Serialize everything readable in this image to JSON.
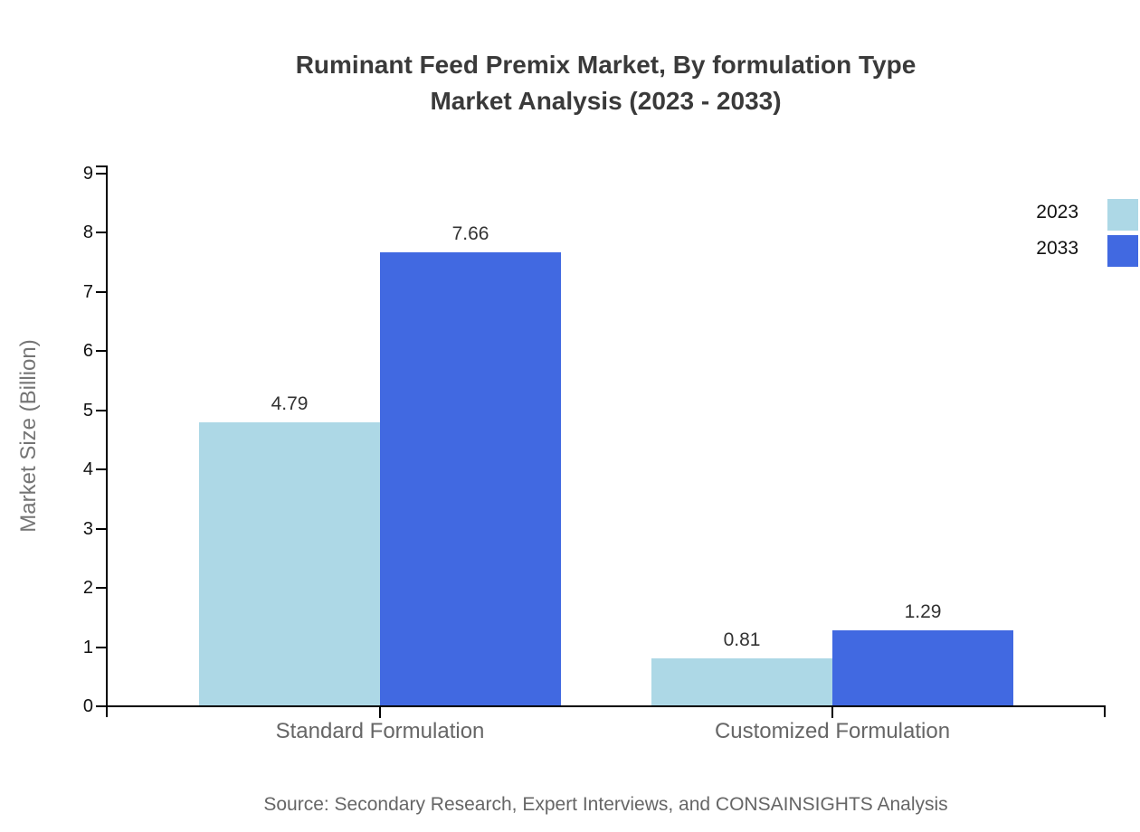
{
  "title": {
    "line1": "Ruminant Feed Premix Market, By formulation Type",
    "line2": "Market Analysis (2023 - 2033)"
  },
  "chart_data": {
    "type": "bar",
    "title": "Ruminant Feed Premix Market, By formulation Type Market Analysis (2023 - 2033)",
    "categories": [
      "Standard Formulation",
      "Customized Formulation"
    ],
    "series": [
      {
        "name": "2023",
        "color": "#add8e6",
        "values": [
          4.79,
          0.81
        ]
      },
      {
        "name": "2033",
        "color": "#4169e1",
        "values": [
          7.66,
          1.29
        ]
      }
    ],
    "xlabel": "",
    "ylabel": "Market Size (Billion)",
    "ylim": [
      0,
      9
    ],
    "ytick_step": 1,
    "ytick_labels": [
      "0",
      "1",
      "2",
      "3",
      "4",
      "5",
      "6",
      "7",
      "8",
      "9"
    ],
    "value_labels": [
      [
        "4.79",
        "0.81"
      ],
      [
        "7.66",
        "1.29"
      ]
    ],
    "grid": false,
    "legend_position": "top-right",
    "axis_color": "#000000"
  },
  "source": {
    "text": "Source: Secondary Research, Expert Interviews, and CONSAINSIGHTS Analysis"
  }
}
